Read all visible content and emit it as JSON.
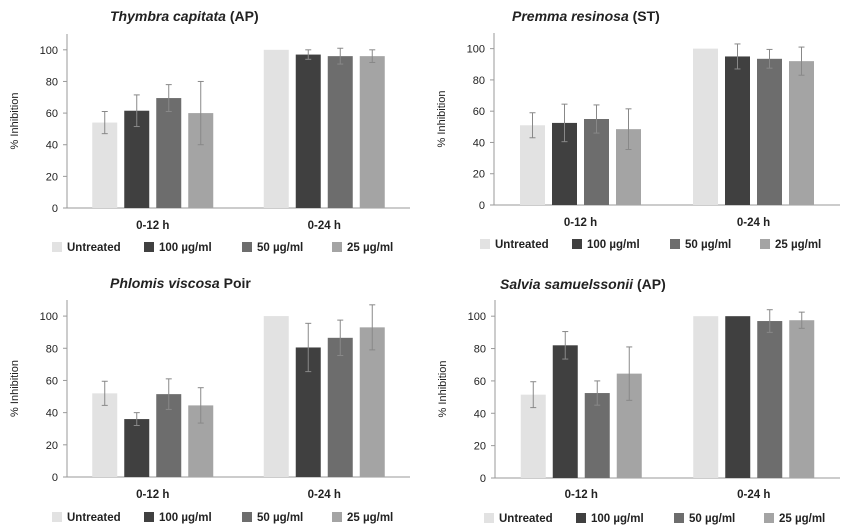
{
  "legend_labels": [
    "Untreated",
    "100 µg/ml",
    "50 µg/ml",
    "25 µg/ml"
  ],
  "colors": {
    "series": [
      "#e2e2e2",
      "#404040",
      "#6d6d6d",
      "#a4a4a4"
    ],
    "axis": "#9a9a9a",
    "error": "#888888"
  },
  "chart_data": [
    {
      "type": "bar",
      "title_italic": "Thymbra capitata",
      "title_rest": " (AP)",
      "ylabel": "% Inhibition",
      "ylim": [
        0,
        110
      ],
      "yticks": [
        0,
        20,
        40,
        60,
        80,
        100
      ],
      "categories": [
        "0-12 h",
        "0-24 h"
      ],
      "series": [
        {
          "name": "Untreated",
          "values": [
            54,
            100
          ],
          "errors": [
            7,
            0.5
          ]
        },
        {
          "name": "100 µg/ml",
          "values": [
            61.5,
            97
          ],
          "errors": [
            10,
            3
          ]
        },
        {
          "name": "50 µg/ml",
          "values": [
            69.5,
            96
          ],
          "errors": [
            8.5,
            5
          ]
        },
        {
          "name": "25 µg/ml",
          "values": [
            60,
            96
          ],
          "errors": [
            20,
            4
          ]
        }
      ]
    },
    {
      "type": "bar",
      "title_italic": "Premma resinosa",
      "title_rest": " (ST)",
      "ylabel": "% Inhibition",
      "ylim": [
        0,
        110
      ],
      "yticks": [
        0,
        20,
        40,
        60,
        80,
        100
      ],
      "categories": [
        "0-12 h",
        "0-24 h"
      ],
      "series": [
        {
          "name": "Untreated",
          "values": [
            51,
            100
          ],
          "errors": [
            8,
            0.5
          ]
        },
        {
          "name": "100 µg/ml",
          "values": [
            52.5,
            95
          ],
          "errors": [
            12,
            8
          ]
        },
        {
          "name": "50 µg/ml",
          "values": [
            55,
            93.5
          ],
          "errors": [
            9,
            6
          ]
        },
        {
          "name": "25 µg/ml",
          "values": [
            48.5,
            92
          ],
          "errors": [
            13,
            9
          ]
        }
      ]
    },
    {
      "type": "bar",
      "title_italic": "Phlomis viscosa",
      "title_rest": " Poir",
      "ylabel": "% Inhibition",
      "ylim": [
        0,
        110
      ],
      "yticks": [
        0,
        20,
        40,
        60,
        80,
        100
      ],
      "categories": [
        "0-12 h",
        "0-24 h"
      ],
      "series": [
        {
          "name": "Untreated",
          "values": [
            52,
            100
          ],
          "errors": [
            7.5,
            0.5
          ]
        },
        {
          "name": "100 µg/ml",
          "values": [
            36,
            80.5
          ],
          "errors": [
            4,
            15
          ]
        },
        {
          "name": "50 µg/ml",
          "values": [
            51.5,
            86.5
          ],
          "errors": [
            9.5,
            11
          ]
        },
        {
          "name": "25 µg/ml",
          "values": [
            44.5,
            93
          ],
          "errors": [
            11,
            14
          ]
        }
      ]
    },
    {
      "type": "bar",
      "title_italic": "Salvia samuelssonii",
      "title_rest": " (AP)",
      "ylabel": "% Inhibition",
      "ylim": [
        0,
        110
      ],
      "yticks": [
        0,
        20,
        40,
        60,
        80,
        100
      ],
      "categories": [
        "0-12 h",
        "0-24 h"
      ],
      "series": [
        {
          "name": "Untreated",
          "values": [
            51.5,
            100
          ],
          "errors": [
            8,
            0.5
          ]
        },
        {
          "name": "100 µg/ml",
          "values": [
            82,
            100
          ],
          "errors": [
            8.5,
            0.5
          ]
        },
        {
          "name": "50 µg/ml",
          "values": [
            52.5,
            97
          ],
          "errors": [
            7.5,
            7
          ]
        },
        {
          "name": "25 µg/ml",
          "values": [
            64.5,
            97.5
          ],
          "errors": [
            16.5,
            5
          ]
        }
      ]
    }
  ]
}
